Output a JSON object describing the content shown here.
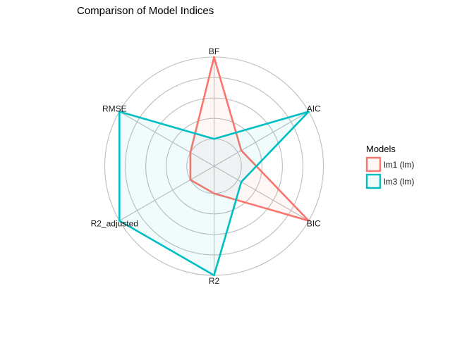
{
  "chart_data": {
    "type": "radar",
    "title": "Comparison of Model Indices",
    "axes": [
      "AIC",
      "BIC",
      "R2",
      "R2_adjusted",
      "RMSE",
      "BF"
    ],
    "rlim": [
      0,
      1
    ],
    "grid": true,
    "legend": {
      "title": "Models",
      "placement": "right"
    },
    "series": [
      {
        "name": "lm1 (lm)",
        "color": "#F8766D",
        "values": [
          0.05,
          1.0,
          0.0,
          0.0,
          0.0,
          1.0
        ]
      },
      {
        "name": "lm3 (lm)",
        "color": "#00BFC4",
        "values": [
          1.0,
          0.05,
          1.0,
          1.0,
          1.0,
          0.0
        ]
      }
    ]
  }
}
